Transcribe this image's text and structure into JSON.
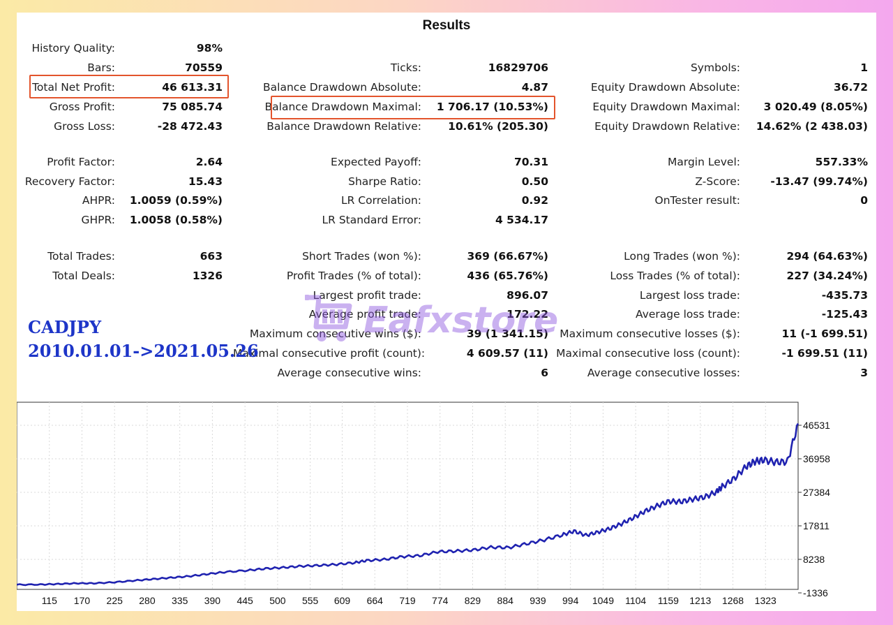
{
  "title": "Results",
  "stats": {
    "history_quality": {
      "label": "History Quality:",
      "value": "98%"
    },
    "bars": {
      "label": "Bars:",
      "value": "70559"
    },
    "ticks": {
      "label": "Ticks:",
      "value": "16829706"
    },
    "symbols": {
      "label": "Symbols:",
      "value": "1"
    },
    "total_net_profit": {
      "label": "Total Net Profit:",
      "value": "46 613.31"
    },
    "balance_drawdown_absolute": {
      "label": "Balance Drawdown Absolute:",
      "value": "4.87"
    },
    "equity_drawdown_absolute": {
      "label": "Equity Drawdown Absolute:",
      "value": "36.72"
    },
    "gross_profit": {
      "label": "Gross Profit:",
      "value": "75 085.74"
    },
    "balance_drawdown_maximal": {
      "label": "Balance Drawdown Maximal:",
      "value": "1 706.17 (10.53%)"
    },
    "equity_drawdown_maximal": {
      "label": "Equity Drawdown Maximal:",
      "value": "3 020.49 (8.05%)"
    },
    "gross_loss": {
      "label": "Gross Loss:",
      "value": "-28 472.43"
    },
    "balance_drawdown_relative": {
      "label": "Balance Drawdown Relative:",
      "value": "10.61% (205.30)"
    },
    "equity_drawdown_relative": {
      "label": "Equity Drawdown Relative:",
      "value": "14.62% (2 438.03)"
    },
    "profit_factor": {
      "label": "Profit Factor:",
      "value": "2.64"
    },
    "expected_payoff": {
      "label": "Expected Payoff:",
      "value": "70.31"
    },
    "margin_level": {
      "label": "Margin Level:",
      "value": "557.33%"
    },
    "recovery_factor": {
      "label": "Recovery Factor:",
      "value": "15.43"
    },
    "sharpe_ratio": {
      "label": "Sharpe Ratio:",
      "value": "0.50"
    },
    "z_score": {
      "label": "Z-Score:",
      "value": "-13.47 (99.74%)"
    },
    "ahpr": {
      "label": "AHPR:",
      "value": "1.0059 (0.59%)"
    },
    "lr_correlation": {
      "label": "LR Correlation:",
      "value": "0.92"
    },
    "ontester_result": {
      "label": "OnTester result:",
      "value": "0"
    },
    "ghpr": {
      "label": "GHPR:",
      "value": "1.0058 (0.58%)"
    },
    "lr_standard_error": {
      "label": "LR Standard Error:",
      "value": "4 534.17"
    },
    "total_trades": {
      "label": "Total Trades:",
      "value": "663"
    },
    "short_trades": {
      "label": "Short Trades (won %):",
      "value": "369 (66.67%)"
    },
    "long_trades": {
      "label": "Long Trades (won %):",
      "value": "294 (64.63%)"
    },
    "total_deals": {
      "label": "Total Deals:",
      "value": "1326"
    },
    "profit_trades": {
      "label": "Profit Trades (% of total):",
      "value": "436 (65.76%)"
    },
    "loss_trades": {
      "label": "Loss Trades (% of total):",
      "value": "227 (34.24%)"
    },
    "largest_profit_trade": {
      "label": "Largest profit trade:",
      "value": "896.07"
    },
    "largest_loss_trade": {
      "label": "Largest loss trade:",
      "value": "-435.73"
    },
    "average_profit_trade": {
      "label": "Average profit trade:",
      "value": "172.22"
    },
    "average_loss_trade": {
      "label": "Average loss trade:",
      "value": "-125.43"
    },
    "max_consecutive_wins": {
      "label": "Maximum consecutive wins ($):",
      "value": "39 (1 341.15)"
    },
    "max_consecutive_losses": {
      "label": "Maximum consecutive losses ($):",
      "value": "11 (-1 699.51)"
    },
    "maximal_consecutive_profit": {
      "label": "Maximal consecutive profit (count):",
      "value": "4 609.57 (11)"
    },
    "maximal_consecutive_loss": {
      "label": "Maximal consecutive loss (count):",
      "value": "-1 699.51 (11)"
    },
    "average_consecutive_wins": {
      "label": "Average consecutive wins:",
      "value": "6"
    },
    "average_consecutive_losses": {
      "label": "Average consecutive losses:",
      "value": "3"
    }
  },
  "caption": {
    "pair": "CADJPY",
    "date_range": "2010.01.01->2021.05.26"
  },
  "watermark": {
    "text": "Eafxstore",
    "icon": "shopping-cart-icon"
  },
  "colors": {
    "highlight_box": "#e3542c",
    "caption": "#1d35c8",
    "balance_line": "#1f22b0",
    "grid": "#d9d9d9"
  },
  "chart_data": {
    "type": "line",
    "title": "",
    "xlabel": "",
    "ylabel": "",
    "x_ticks": [
      "115",
      "170",
      "225",
      "280",
      "335",
      "390",
      "445",
      "500",
      "555",
      "609",
      "664",
      "719",
      "774",
      "829",
      "884",
      "939",
      "994",
      "1049",
      "1104",
      "1159",
      "1213",
      "1268",
      "1323"
    ],
    "y_ticks": [
      "46531",
      "36958",
      "27384",
      "17811",
      "8238",
      "-1336"
    ],
    "ylim": [
      -1336,
      46531
    ],
    "xlim": [
      60,
      1378
    ],
    "grid": true,
    "series": [
      {
        "name": "",
        "x": [
          60,
          100,
          130,
          160,
          190,
          225,
          260,
          290,
          320,
          350,
          380,
          410,
          450,
          480,
          510,
          540,
          570,
          600,
          630,
          650,
          680,
          710,
          740,
          770,
          800,
          830,
          860,
          890,
          920,
          950,
          980,
          1000,
          1020,
          1040,
          1060,
          1080,
          1100,
          1120,
          1140,
          1160,
          1180,
          1200,
          1220,
          1240,
          1250,
          1270,
          1290,
          1305,
          1320,
          1340,
          1360,
          1378
        ],
        "y": [
          1000,
          1050,
          1200,
          1400,
          1400,
          1700,
          2200,
          2600,
          3000,
          3400,
          4000,
          4600,
          5100,
          5600,
          5900,
          6300,
          6500,
          6800,
          7300,
          7900,
          8200,
          9000,
          9300,
          10400,
          10600,
          10900,
          11700,
          11600,
          12700,
          13800,
          15200,
          16300,
          15100,
          16000,
          17000,
          18400,
          20100,
          22000,
          23500,
          24800,
          24700,
          25400,
          26000,
          27500,
          29000,
          31300,
          34700,
          36200,
          36600,
          36000,
          36100,
          47000
        ]
      }
    ]
  }
}
